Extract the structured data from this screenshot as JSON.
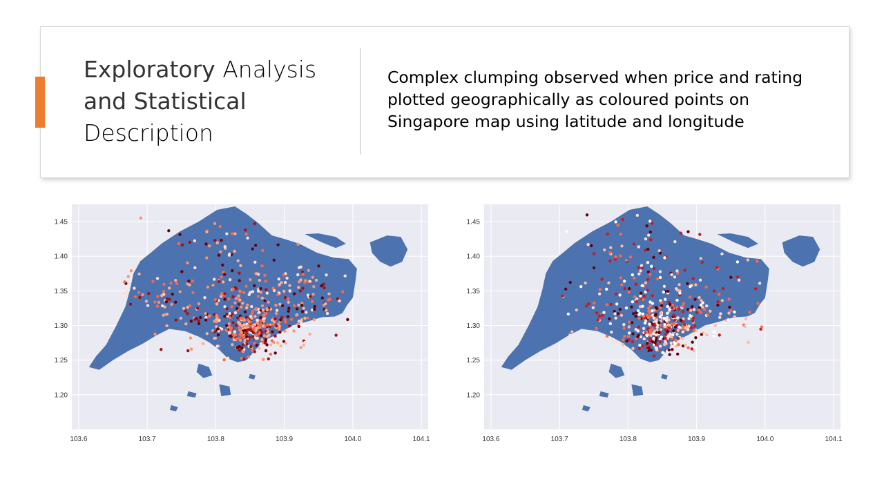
{
  "header": {
    "title_part1": "Exploratory ",
    "title_part2": "Analysis",
    "title_part3": "and Statistical",
    "title_part4": "Description",
    "subtitle": "Complex clumping observed when price and rating plotted geographically as coloured points on Singapore map using latitude and longitude",
    "accent_color": "#ed7d31"
  },
  "chart_data": [
    {
      "type": "scatter",
      "title": "",
      "xlabel": "",
      "ylabel": "",
      "xlim": [
        103.59,
        104.11
      ],
      "ylim": [
        1.15,
        1.475
      ],
      "x_ticks": [
        "103.6",
        "103.7",
        "103.8",
        "103.9",
        "104.0",
        "104.1"
      ],
      "y_ticks": [
        "1.20",
        "1.25",
        "1.30",
        "1.35",
        "1.40",
        "1.45"
      ],
      "grid": true,
      "background": "#eaeaf2",
      "map_color": "#4c72b0",
      "colormap": "Reds",
      "clusters": [
        {
          "lon": 103.845,
          "lat": 1.292,
          "spread_lon": 0.025,
          "spread_lat": 0.018,
          "count": 210
        },
        {
          "lon": 103.87,
          "lat": 1.315,
          "spread_lon": 0.045,
          "spread_lat": 0.025,
          "count": 120
        },
        {
          "lon": 103.78,
          "lat": 1.32,
          "spread_lon": 0.05,
          "spread_lat": 0.03,
          "count": 80
        },
        {
          "lon": 103.85,
          "lat": 1.36,
          "spread_lon": 0.05,
          "spread_lat": 0.03,
          "count": 70
        },
        {
          "lon": 103.8,
          "lat": 1.42,
          "spread_lon": 0.04,
          "spread_lat": 0.02,
          "count": 30
        },
        {
          "lon": 103.93,
          "lat": 1.34,
          "spread_lon": 0.04,
          "spread_lat": 0.025,
          "count": 60
        },
        {
          "lon": 103.72,
          "lat": 1.345,
          "spread_lon": 0.035,
          "spread_lat": 0.015,
          "count": 35
        }
      ],
      "color_mix": [
        "#fc9272",
        "#fb6a4a",
        "#fcae91",
        "#67000d",
        "#a50f15",
        "#fee0d2"
      ]
    },
    {
      "type": "scatter",
      "title": "",
      "xlabel": "",
      "ylabel": "",
      "xlim": [
        103.59,
        104.11
      ],
      "ylim": [
        1.15,
        1.475
      ],
      "x_ticks": [
        "103.6",
        "103.7",
        "103.8",
        "103.9",
        "104.0",
        "104.1"
      ],
      "y_ticks": [
        "1.20",
        "1.25",
        "1.30",
        "1.35",
        "1.40",
        "1.45"
      ],
      "grid": true,
      "background": "#eaeaf2",
      "map_color": "#4c72b0",
      "colormap": "Reds",
      "clusters": [
        {
          "lon": 103.845,
          "lat": 1.292,
          "spread_lon": 0.025,
          "spread_lat": 0.018,
          "count": 210
        },
        {
          "lon": 103.875,
          "lat": 1.312,
          "spread_lon": 0.04,
          "spread_lat": 0.02,
          "count": 110
        },
        {
          "lon": 103.79,
          "lat": 1.33,
          "spread_lon": 0.05,
          "spread_lat": 0.03,
          "count": 70
        },
        {
          "lon": 103.85,
          "lat": 1.37,
          "spread_lon": 0.05,
          "spread_lat": 0.03,
          "count": 60
        },
        {
          "lon": 103.81,
          "lat": 1.42,
          "spread_lon": 0.04,
          "spread_lat": 0.02,
          "count": 30
        },
        {
          "lon": 103.95,
          "lat": 1.34,
          "spread_lon": 0.04,
          "spread_lat": 0.025,
          "count": 45
        }
      ],
      "color_mix": [
        "#ffffff",
        "#fee0d2",
        "#fcbba1",
        "#fb6a4a",
        "#cb181d",
        "#67000d"
      ]
    }
  ]
}
